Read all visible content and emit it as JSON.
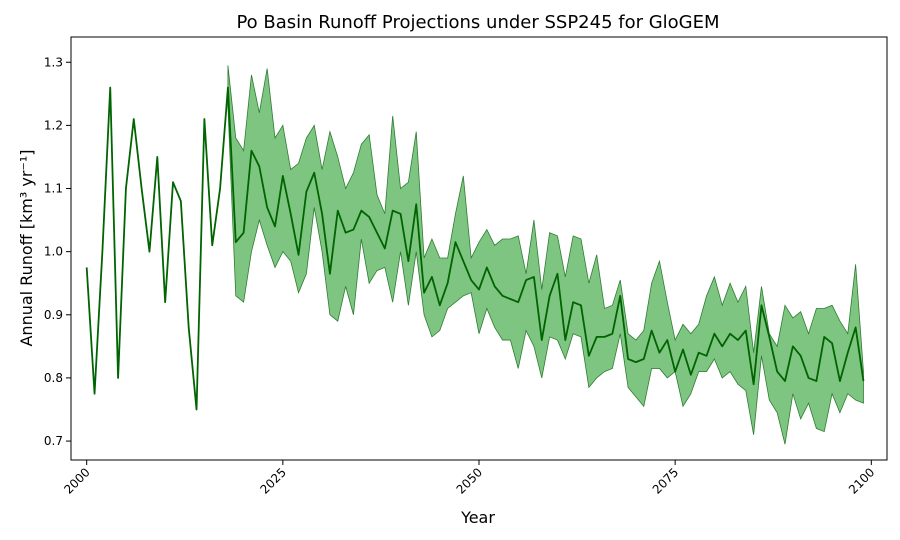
{
  "chart_data": {
    "type": "line",
    "title": "Po Basin Runoff Projections under SSP245 for GloGEM",
    "xlabel": "Year",
    "ylabel": "Annual Runoff [km³ yr⁻¹]",
    "xlim": [
      1998,
      2102
    ],
    "ylim": [
      0.67,
      1.34
    ],
    "xticks": [
      2000,
      2025,
      2050,
      2075,
      2100
    ],
    "yticks": [
      0.7,
      0.8,
      0.9,
      1.0,
      1.1,
      1.2,
      1.3
    ],
    "xtick_rotation": 45,
    "grid": false,
    "legend": "none",
    "colors": {
      "line": "#006400",
      "band_fill": "#4caf50",
      "band_edge": "#2e7d32"
    },
    "series": [
      {
        "kind": "line",
        "x": [
          2000,
          2001,
          2002,
          2003,
          2004,
          2005,
          2006,
          2007,
          2008,
          2009,
          2010,
          2011,
          2012,
          2013,
          2014,
          2015,
          2016,
          2017,
          2018,
          2019,
          2020,
          2021,
          2022,
          2023,
          2024,
          2025,
          2026,
          2027,
          2028,
          2029,
          2030,
          2031,
          2032,
          2033,
          2034,
          2035,
          2036,
          2037,
          2038,
          2039,
          2040,
          2041,
          2042,
          2043,
          2044,
          2045,
          2046,
          2047,
          2048,
          2049,
          2050,
          2051,
          2052,
          2053,
          2054,
          2055,
          2056,
          2057,
          2058,
          2059,
          2060,
          2061,
          2062,
          2063,
          2064,
          2065,
          2066,
          2067,
          2068,
          2069,
          2070,
          2071,
          2072,
          2073,
          2074,
          2075,
          2076,
          2077,
          2078,
          2079,
          2080,
          2081,
          2082,
          2083,
          2084,
          2085,
          2086,
          2087,
          2088,
          2089,
          2090,
          2091,
          2092,
          2093,
          2094,
          2095,
          2096,
          2097,
          2098,
          2099
        ],
        "y": [
          0.975,
          0.775,
          1.0,
          1.26,
          0.8,
          1.1,
          1.21,
          1.1,
          1.0,
          1.15,
          0.92,
          1.11,
          1.08,
          0.88,
          0.75,
          1.21,
          1.01,
          1.1,
          1.26,
          1.015,
          1.03,
          1.16,
          1.135,
          1.07,
          1.04,
          1.12,
          1.06,
          0.995,
          1.095,
          1.125,
          1.06,
          0.965,
          1.065,
          1.03,
          1.035,
          1.065,
          1.055,
          1.03,
          1.005,
          1.065,
          1.06,
          0.985,
          1.075,
          0.935,
          0.96,
          0.915,
          0.95,
          1.015,
          0.985,
          0.955,
          0.94,
          0.975,
          0.945,
          0.93,
          0.925,
          0.92,
          0.955,
          0.96,
          0.86,
          0.93,
          0.965,
          0.86,
          0.92,
          0.915,
          0.835,
          0.865,
          0.865,
          0.87,
          0.93,
          0.83,
          0.825,
          0.83,
          0.875,
          0.84,
          0.86,
          0.81,
          0.845,
          0.805,
          0.84,
          0.835,
          0.87,
          0.85,
          0.87,
          0.86,
          0.875,
          0.79,
          0.915,
          0.865,
          0.81,
          0.795,
          0.85,
          0.835,
          0.8,
          0.795,
          0.865,
          0.855,
          0.795,
          0.84,
          0.88,
          0.795
        ]
      },
      {
        "kind": "band",
        "x": [
          2018,
          2019,
          2020,
          2021,
          2022,
          2023,
          2024,
          2025,
          2026,
          2027,
          2028,
          2029,
          2030,
          2031,
          2032,
          2033,
          2034,
          2035,
          2036,
          2037,
          2038,
          2039,
          2040,
          2041,
          2042,
          2043,
          2044,
          2045,
          2046,
          2047,
          2048,
          2049,
          2050,
          2051,
          2052,
          2053,
          2054,
          2055,
          2056,
          2057,
          2058,
          2059,
          2060,
          2061,
          2062,
          2063,
          2064,
          2065,
          2066,
          2067,
          2068,
          2069,
          2070,
          2071,
          2072,
          2073,
          2074,
          2075,
          2076,
          2077,
          2078,
          2079,
          2080,
          2081,
          2082,
          2083,
          2084,
          2085,
          2086,
          2087,
          2088,
          2089,
          2090,
          2091,
          2092,
          2093,
          2094,
          2095,
          2096,
          2097,
          2098,
          2099
        ],
        "upper": [
          1.295,
          1.18,
          1.16,
          1.28,
          1.22,
          1.29,
          1.18,
          1.2,
          1.13,
          1.14,
          1.18,
          1.2,
          1.13,
          1.19,
          1.15,
          1.1,
          1.125,
          1.17,
          1.185,
          1.09,
          1.06,
          1.215,
          1.1,
          1.11,
          1.19,
          0.99,
          1.02,
          0.99,
          0.99,
          1.06,
          1.12,
          0.99,
          1.015,
          1.035,
          1.01,
          1.02,
          1.02,
          1.025,
          0.965,
          1.05,
          0.94,
          1.03,
          1.025,
          0.96,
          1.025,
          1.02,
          0.95,
          0.995,
          0.91,
          0.915,
          0.955,
          0.87,
          0.86,
          0.875,
          0.95,
          0.985,
          0.92,
          0.86,
          0.885,
          0.87,
          0.885,
          0.93,
          0.96,
          0.915,
          0.95,
          0.92,
          0.945,
          0.84,
          0.945,
          0.87,
          0.85,
          0.915,
          0.895,
          0.905,
          0.87,
          0.91,
          0.91,
          0.915,
          0.89,
          0.87,
          0.98,
          0.81
        ],
        "lower": [
          1.23,
          0.93,
          0.92,
          1.0,
          1.05,
          1.01,
          0.975,
          1.0,
          0.985,
          0.935,
          0.965,
          1.07,
          1.0,
          0.9,
          0.89,
          0.945,
          0.9,
          1.02,
          0.95,
          0.97,
          0.975,
          0.92,
          1.0,
          0.915,
          1.0,
          0.9,
          0.865,
          0.875,
          0.91,
          0.92,
          0.93,
          0.935,
          0.87,
          0.91,
          0.88,
          0.86,
          0.86,
          0.815,
          0.875,
          0.85,
          0.8,
          0.865,
          0.86,
          0.83,
          0.87,
          0.865,
          0.785,
          0.8,
          0.81,
          0.815,
          0.87,
          0.785,
          0.77,
          0.755,
          0.815,
          0.815,
          0.8,
          0.81,
          0.755,
          0.775,
          0.81,
          0.81,
          0.83,
          0.8,
          0.81,
          0.79,
          0.78,
          0.71,
          0.835,
          0.765,
          0.745,
          0.695,
          0.775,
          0.735,
          0.76,
          0.72,
          0.715,
          0.775,
          0.745,
          0.775,
          0.765,
          0.76
        ]
      }
    ]
  }
}
